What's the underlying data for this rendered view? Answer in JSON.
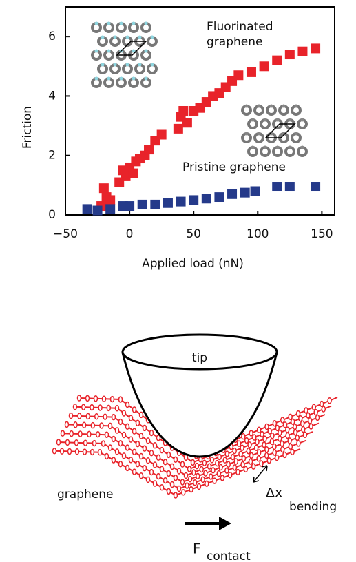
{
  "chart_data": {
    "type": "scatter",
    "x_label": "Applied load (nN)",
    "y_label": "Friction",
    "xlim": [
      -50,
      160
    ],
    "ylim": [
      0,
      7
    ],
    "xticks": [
      {
        "value": -50,
        "label": "−50"
      },
      0,
      50,
      100,
      150
    ],
    "yticks": [
      0,
      2,
      4,
      6
    ],
    "series": [
      {
        "name": "Fluorinated graphene",
        "color": "#e8232a",
        "x": [
          -22,
          -20,
          -18,
          -15,
          -8,
          -5,
          -3,
          0,
          3,
          5,
          8,
          12,
          15,
          20,
          25,
          38,
          40,
          42,
          45,
          50,
          55,
          60,
          65,
          70,
          75,
          80,
          85,
          95,
          105,
          115,
          125,
          135,
          145
        ],
        "values": [
          0.3,
          0.9,
          0.6,
          0.5,
          1.1,
          1.5,
          1.3,
          1.6,
          1.4,
          1.8,
          1.9,
          2.0,
          2.2,
          2.5,
          2.7,
          2.9,
          3.3,
          3.5,
          3.1,
          3.5,
          3.6,
          3.8,
          4.0,
          4.1,
          4.3,
          4.5,
          4.7,
          4.8,
          5.0,
          5.2,
          5.4,
          5.5,
          5.6
        ]
      },
      {
        "name": "Pristine graphene",
        "color": "#253a8a",
        "x": [
          -33,
          -25,
          -15,
          -5,
          0,
          10,
          20,
          30,
          40,
          50,
          60,
          70,
          80,
          90,
          98,
          115,
          125,
          145
        ],
        "values": [
          0.2,
          0.15,
          0.2,
          0.3,
          0.3,
          0.35,
          0.35,
          0.4,
          0.45,
          0.5,
          0.55,
          0.6,
          0.7,
          0.75,
          0.8,
          0.95,
          0.95,
          0.95
        ]
      }
    ]
  },
  "diagram": {
    "tip_label": "tip",
    "sheet_label": "graphene",
    "displacement_label": "Δx",
    "displacement_subscript": "bending",
    "force_label": "F",
    "force_subscript": "contact"
  }
}
